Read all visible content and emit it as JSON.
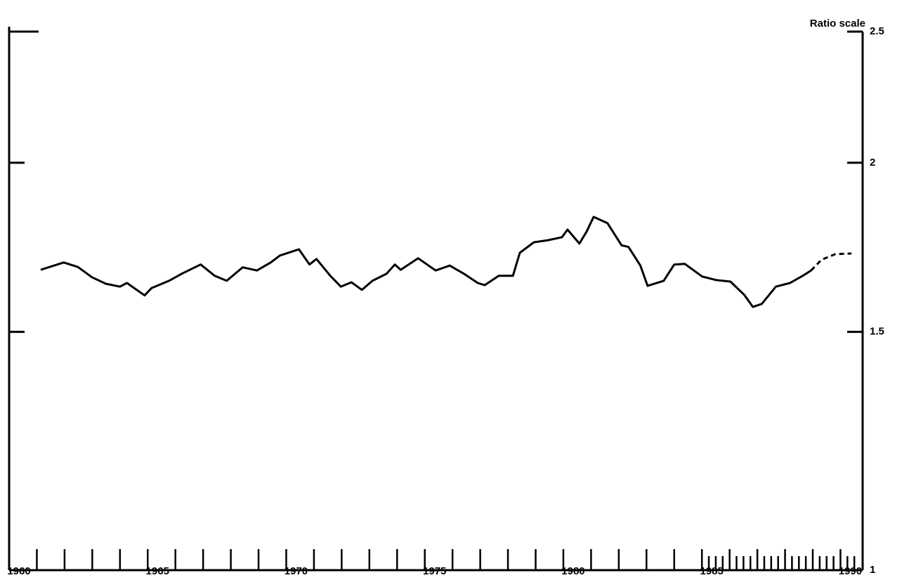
{
  "chart_data": {
    "type": "line",
    "y_axis_label": "Ratio scale",
    "yscale": "log",
    "ylim": [
      1,
      2.5
    ],
    "yticks": [
      1,
      1.5,
      2,
      2.5
    ],
    "xlim": [
      1960,
      1990.8
    ],
    "xticks": [
      1960,
      1965,
      1970,
      1975,
      1980,
      1985,
      1990
    ],
    "xminorticks": [
      1961,
      1962,
      1963,
      1964,
      1965,
      1966,
      1967,
      1968,
      1969,
      1970,
      1971,
      1972,
      1973,
      1974,
      1975,
      1976,
      1977,
      1978,
      1979,
      1980,
      1981,
      1982,
      1983,
      1984,
      1985,
      1985.25,
      1985.5,
      1985.75,
      1986,
      1986.25,
      1986.5,
      1986.75,
      1987,
      1987.25,
      1987.5,
      1987.75,
      1988,
      1988.25,
      1988.5,
      1988.75,
      1989,
      1989.25,
      1989.5,
      1989.75,
      1990,
      1990.25,
      1990.5
    ],
    "series": [
      {
        "color": "#000000",
        "style": "solid",
        "x": [
          1961.14,
          1961.97,
          1962.48,
          1962.99,
          1963.49,
          1964.0,
          1964.25,
          1964.89,
          1965.14,
          1965.77,
          1966.23,
          1966.91,
          1967.42,
          1967.85,
          1968.43,
          1968.94,
          1969.44,
          1969.77,
          1970.46,
          1970.84,
          1971.09,
          1971.59,
          1971.97,
          1972.35,
          1972.73,
          1973.11,
          1973.62,
          1973.92,
          1974.13,
          1974.76,
          1975.39,
          1975.9,
          1976.41,
          1976.91,
          1977.16,
          1977.67,
          1978.18,
          1978.43,
          1978.94,
          1979.44,
          1979.95,
          1980.15,
          1980.58,
          1980.84,
          1981.09,
          1981.59,
          1982.1,
          1982.35,
          1982.78,
          1983.04,
          1983.62,
          1984.0,
          1984.38,
          1985.01,
          1985.52,
          1986.03,
          1986.53,
          1986.84,
          1987.16,
          1987.67,
          1988.18,
          1988.68,
          1988.94
        ],
        "values": [
          1.667,
          1.688,
          1.675,
          1.646,
          1.628,
          1.62,
          1.63,
          1.596,
          1.616,
          1.636,
          1.656,
          1.682,
          1.65,
          1.636,
          1.674,
          1.665,
          1.688,
          1.708,
          1.726,
          1.682,
          1.698,
          1.65,
          1.62,
          1.632,
          1.611,
          1.636,
          1.656,
          1.682,
          1.667,
          1.7,
          1.665,
          1.679,
          1.656,
          1.63,
          1.624,
          1.65,
          1.65,
          1.716,
          1.747,
          1.753,
          1.762,
          1.785,
          1.743,
          1.779,
          1.824,
          1.805,
          1.738,
          1.733,
          1.679,
          1.622,
          1.636,
          1.682,
          1.684,
          1.648,
          1.638,
          1.634,
          1.597,
          1.565,
          1.573,
          1.62,
          1.63,
          1.652,
          1.665
        ]
      },
      {
        "color": "#000000",
        "style": "dashed",
        "x": [
          1988.94,
          1989.32,
          1989.82,
          1990.4
        ],
        "values": [
          1.665,
          1.696,
          1.712,
          1.714
        ]
      }
    ]
  }
}
